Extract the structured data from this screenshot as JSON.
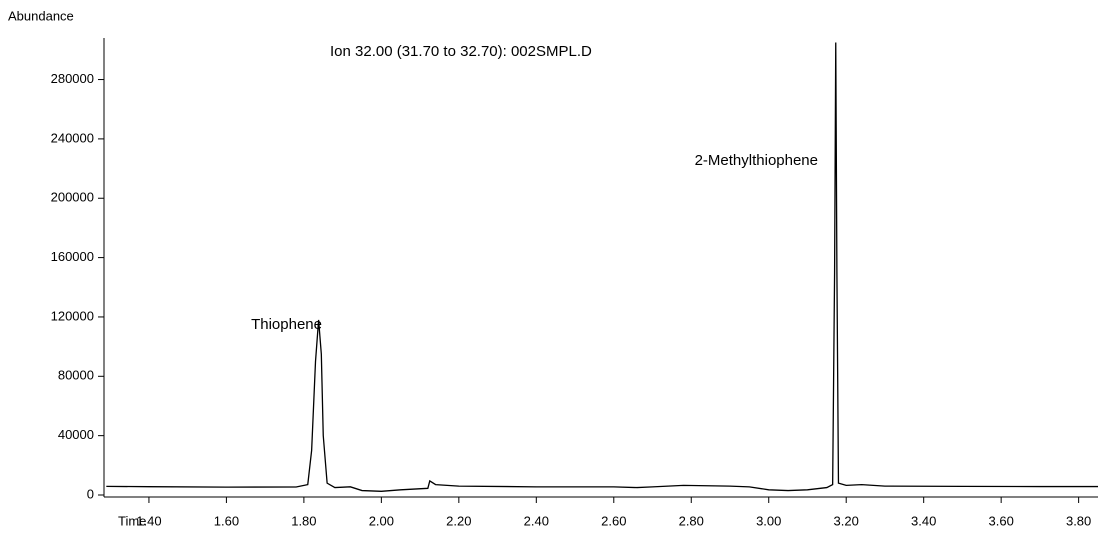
{
  "chart_data": {
    "type": "line",
    "title": "Ion  32.00 (31.70 to 32.70): 002SMPL.D",
    "y_label": "Abundance",
    "x_label": "Time",
    "annotations": [
      "Thiophene",
      "2-Methylthiophene"
    ],
    "color": "#000000",
    "x": [
      1.29,
      1.4,
      1.6,
      1.78,
      1.81,
      1.82,
      1.83,
      1.838,
      1.845,
      1.85,
      1.86,
      1.88,
      1.92,
      1.95,
      2.0,
      2.05,
      2.12,
      2.125,
      2.14,
      2.2,
      2.4,
      2.6,
      2.66,
      2.7,
      2.78,
      2.9,
      2.95,
      3.0,
      3.05,
      3.1,
      3.15,
      3.165,
      3.17,
      3.173,
      3.176,
      3.18,
      3.2,
      3.24,
      3.3,
      3.5,
      3.7,
      3.85
    ],
    "values": [
      5800,
      5600,
      5300,
      5400,
      7000,
      30000,
      90000,
      118000,
      95000,
      40000,
      8000,
      5000,
      5500,
      3000,
      2500,
      3500,
      4500,
      9500,
      7000,
      6000,
      5500,
      5500,
      5000,
      5500,
      6500,
      6000,
      5500,
      3500,
      3000,
      3500,
      5000,
      7000,
      150000,
      305000,
      150000,
      8000,
      6500,
      7000,
      6000,
      5800,
      5700,
      5700
    ],
    "xlim": [
      1.284,
      3.85
    ],
    "ylim": [
      0,
      308000
    ],
    "xticks": [
      {
        "value": 1.4,
        "label": "1.40"
      },
      {
        "value": 1.6,
        "label": "1.60"
      },
      {
        "value": 1.8,
        "label": "1.80"
      },
      {
        "value": 2.0,
        "label": "2.00"
      },
      {
        "value": 2.2,
        "label": "2.20"
      },
      {
        "value": 2.4,
        "label": "2.40"
      },
      {
        "value": 2.6,
        "label": "2.60"
      },
      {
        "value": 2.8,
        "label": "2.80"
      },
      {
        "value": 3.0,
        "label": "3.00"
      },
      {
        "value": 3.2,
        "label": "3.20"
      },
      {
        "value": 3.4,
        "label": "3.40"
      },
      {
        "value": 3.6,
        "label": "3.60"
      },
      {
        "value": 3.8,
        "label": "3.80"
      }
    ],
    "yticks": [
      0,
      40000,
      80000,
      120000,
      160000,
      200000,
      240000,
      280000
    ]
  }
}
